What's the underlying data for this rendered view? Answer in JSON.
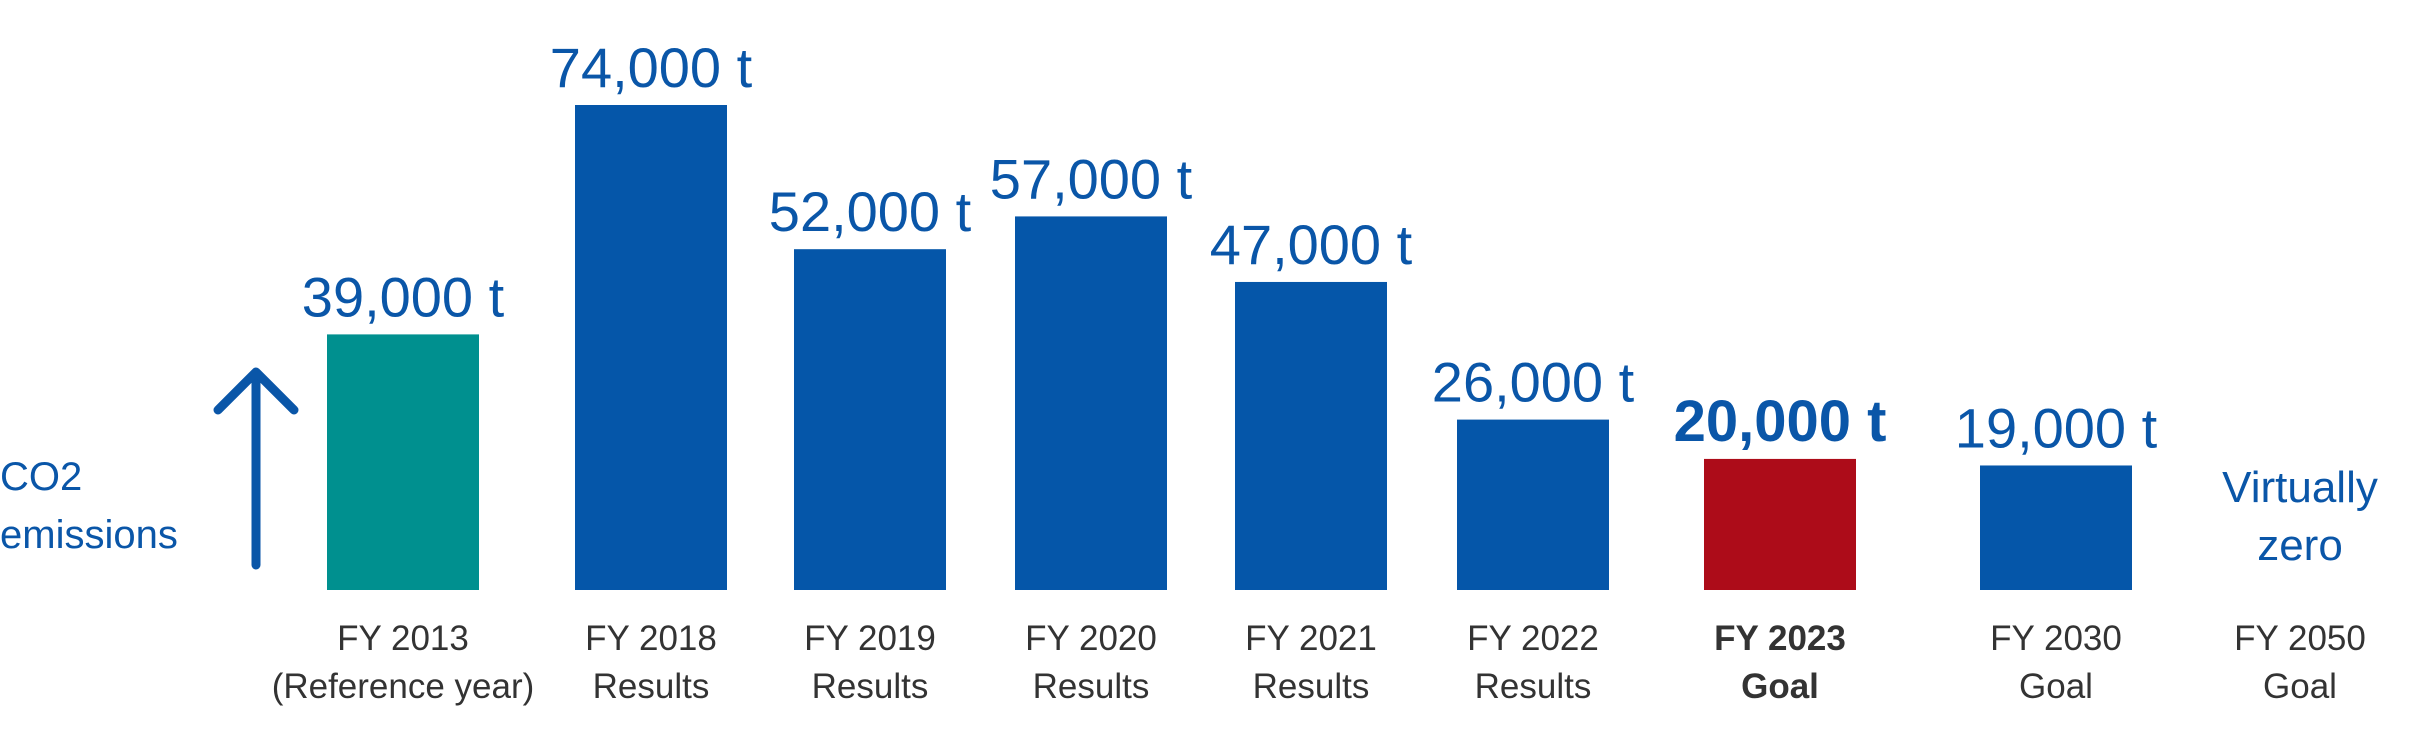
{
  "chart_data": {
    "type": "bar",
    "ylabel": "CO2\nemissions",
    "unit": "t",
    "categories": [
      {
        "line1": "FY 2013",
        "line2": "(Reference year)",
        "bold": false
      },
      {
        "line1": "FY 2018",
        "line2": "Results",
        "bold": false
      },
      {
        "line1": "FY 2019",
        "line2": "Results",
        "bold": false
      },
      {
        "line1": "FY 2020",
        "line2": "Results",
        "bold": false
      },
      {
        "line1": "FY 2021",
        "line2": "Results",
        "bold": false
      },
      {
        "line1": "FY 2022",
        "line2": "Results",
        "bold": false
      },
      {
        "line1": "FY 2023",
        "line2": "Goal",
        "bold": true
      },
      {
        "line1": "FY 2030",
        "line2": "Goal",
        "bold": false
      },
      {
        "line1": "FY 2050",
        "line2": "Goal",
        "bold": false
      }
    ],
    "values": [
      39000,
      74000,
      52000,
      57000,
      47000,
      26000,
      20000,
      19000,
      null
    ],
    "data_labels": [
      "39,000 t",
      "74,000 t",
      "52,000 t",
      "57,000 t",
      "47,000 t",
      "26,000 t",
      "20,000 t",
      "19,000 t",
      "Virtually\nzero"
    ],
    "bar_colors": [
      "#00908f",
      "#0556a9",
      "#0556a9",
      "#0556a9",
      "#0556a9",
      "#0556a9",
      "#ad0c19",
      "#0556a9",
      null
    ],
    "colors": {
      "label": "#0a56a8",
      "axis_text": "#333333",
      "arrow": "#0a56a8"
    }
  }
}
